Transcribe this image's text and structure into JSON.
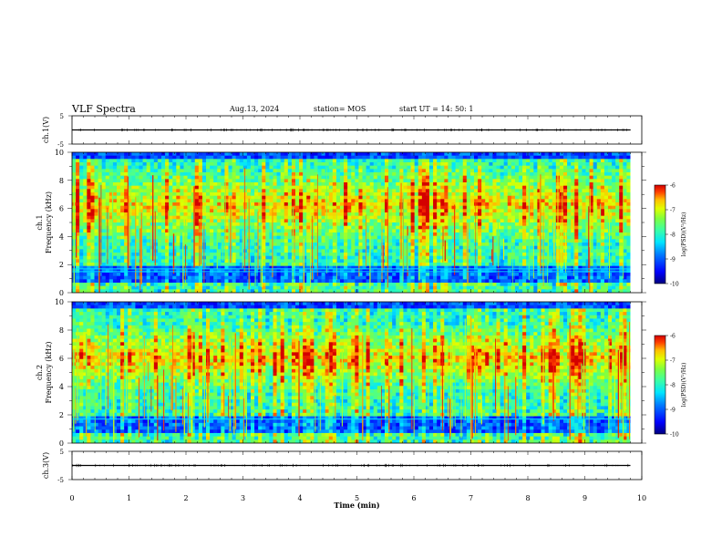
{
  "header": {
    "title": "VLF Spectra",
    "date": "Aug.13, 2024",
    "station": "station= MOS",
    "start_ut": "start  UT =   14: 50: 1"
  },
  "axes": {
    "time_label": "Time  (min)",
    "time_ticks": [
      "0",
      "1",
      "2",
      "3",
      "4",
      "5",
      "6",
      "7",
      "8",
      "9",
      "10"
    ],
    "freq_ticks": [
      "0",
      "2",
      "4",
      "6",
      "8",
      "10"
    ],
    "volt_ticks": [
      "5",
      "-5"
    ],
    "ch1_volt_label": "ch.1(V)",
    "ch1_freq_label": "Frequency  (kHz)",
    "ch1_label": "ch.1",
    "ch2_freq_label": "Frequency  (kHz)",
    "ch2_label": "ch.2",
    "ch3_volt_label": "ch.3(V)"
  },
  "colorbar": {
    "label": "log(PSD)(V²/Hz)",
    "ticks": [
      "-6",
      "-7",
      "-8",
      "-9",
      "-10"
    ],
    "colors": [
      "#00007f",
      "#0000ff",
      "#007fff",
      "#00e5ff",
      "#3fff9f",
      "#7fff3f",
      "#dfff00",
      "#ffbf00",
      "#ff4000",
      "#d40000",
      "#ffffff"
    ]
  },
  "chart_data": [
    {
      "type": "line",
      "panel": "ch.1(V)",
      "x_unit": "min",
      "xlim": [
        0,
        10
      ],
      "ylim": [
        -5,
        5
      ],
      "x_end": 9.8,
      "approx_level": 0.0
    },
    {
      "type": "heatmap",
      "panel": "ch.1 spectrogram",
      "xlabel": "Time  (min)",
      "ylabel": "Frequency  (kHz)",
      "xlim": [
        0,
        10
      ],
      "ylim": [
        0,
        10
      ],
      "x_end": 9.8,
      "zlim": [
        -10,
        -6
      ],
      "zlabel": "log(PSD)(V²/Hz)",
      "background_band_khz": [
        2.0,
        9.5
      ],
      "peak_band_khz": [
        4.5,
        8.0
      ],
      "weak_band_khz": [
        0.6,
        1.8
      ],
      "horizontal_lines_khz": [
        1.5,
        1.7
      ]
    },
    {
      "type": "heatmap",
      "panel": "ch.2 spectrogram",
      "xlabel": "Time  (min)",
      "ylabel": "Frequency  (kHz)",
      "xlim": [
        0,
        10
      ],
      "ylim": [
        0,
        10
      ],
      "x_end": 9.8,
      "zlim": [
        -10,
        -6
      ],
      "zlabel": "log(PSD)(V²/Hz)",
      "background_band_khz": [
        2.5,
        9.5
      ],
      "peak_band_khz": [
        4.5,
        7.5
      ],
      "weak_band_khz": [
        0.6,
        2.0
      ],
      "horizontal_lines_khz": [
        1.7
      ]
    },
    {
      "type": "line",
      "panel": "ch.3(V)",
      "x_unit": "min",
      "xlim": [
        0,
        10
      ],
      "ylim": [
        -5,
        5
      ],
      "x_end": 9.8,
      "approx_level": 0.0
    }
  ]
}
